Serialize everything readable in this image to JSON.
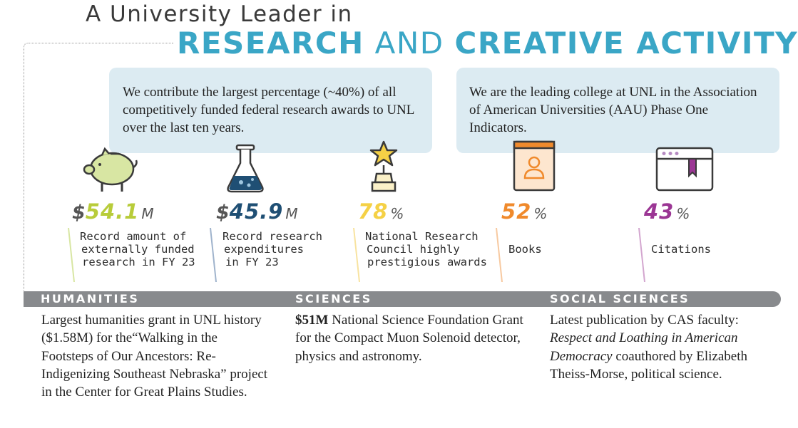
{
  "heading": {
    "line1": "A University Leader in",
    "line2_a": "RESEARCH",
    "line2_b": "AND",
    "line2_c": "CREATIVE ACTIVITY"
  },
  "callouts": {
    "federal": "We contribute the largest percentage (~40%) of all competitively funded federal research awards to UNL over the last ten years.",
    "aau": "We are the leading college at UNL in the Association of American Universities (AAU) Phase One Indicators."
  },
  "stats": [
    {
      "prefix": "$",
      "value": "54.1",
      "suffix": "M",
      "line1": "Record amount of",
      "line2": "externally funded",
      "line3": "research in FY 23",
      "color": "#b8cc3a"
    },
    {
      "prefix": "$",
      "value": "45.9",
      "suffix": "M",
      "line1": "Record research",
      "line2": "expenditures",
      "line3": "in FY 23",
      "color": "#1f4f74"
    },
    {
      "prefix": "",
      "value": "78",
      "suffix": "%",
      "line1": "National Research",
      "line2": "Council highly",
      "line3": "prestigious awards",
      "color": "#f5d146"
    },
    {
      "prefix": "",
      "value": "52",
      "suffix": "%",
      "line1": "Books",
      "line2": "",
      "line3": "",
      "color": "#f08a2c"
    },
    {
      "prefix": "",
      "value": "43",
      "suffix": "%",
      "line1": "Citations",
      "line2": "",
      "line3": "",
      "color": "#9b3694"
    }
  ],
  "sections": {
    "humanities": {
      "label": "HUMANITIES",
      "text": "Largest humanities grant in UNL history ($1.58M) for the“Walking in the Footsteps of Our Ancestors: Re-Indigenizing Southeast Nebraska” project in the Center for Great Plains Studies."
    },
    "sciences": {
      "label": "SCIENCES",
      "bold": "$51M",
      "text": " National Science Foundation Grant for the Compact Muon Solenoid detector, physics and astronomy."
    },
    "social": {
      "label": "SOCIAL SCIENCES",
      "text_pre": "Latest publication by CAS faculty: ",
      "italic": "Respect and Loathing in American Democracy",
      "text_post": " coauthored by Elizabeth Theiss-Morse, political science."
    }
  },
  "icons": [
    "piggy-bank-icon",
    "flask-icon",
    "trophy-star-icon",
    "book-person-icon",
    "browser-bookmark-icon"
  ]
}
